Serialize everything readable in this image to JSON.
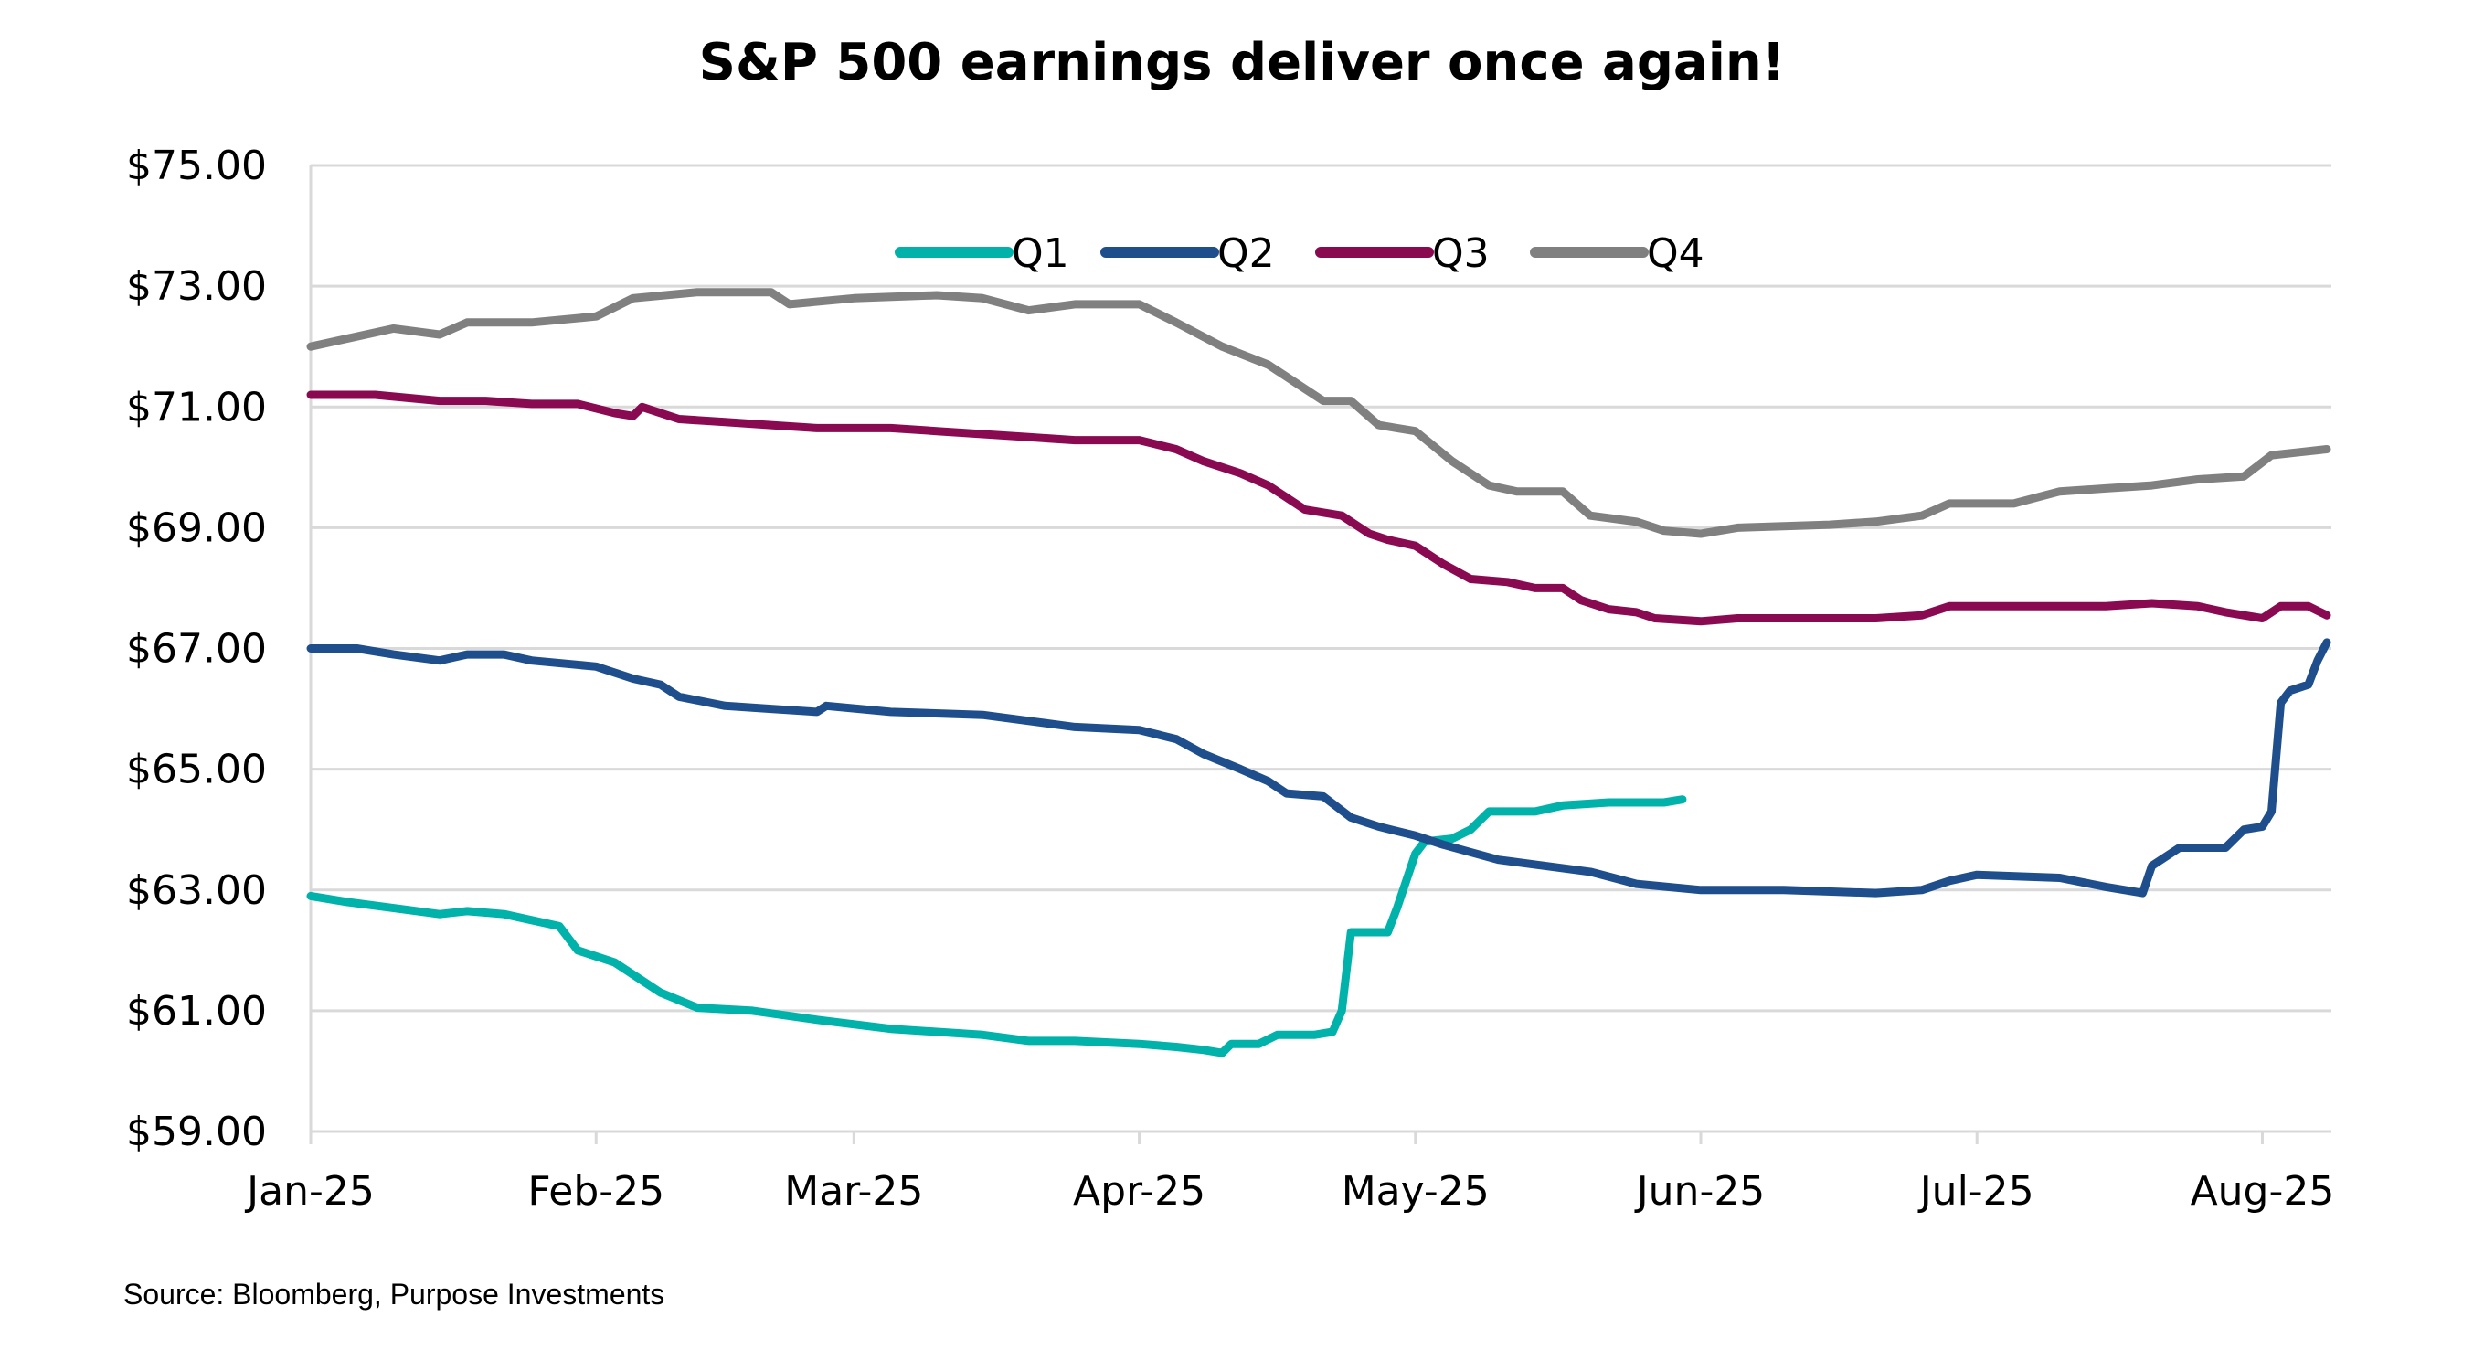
{
  "chart_data": {
    "type": "line",
    "title": "S&P 500 earnings deliver once again!",
    "source": "Source: Bloomberg, Purpose Investments",
    "xlabel": "",
    "ylabel": "",
    "ylim": [
      59,
      75
    ],
    "yticks": [
      59,
      61,
      63,
      65,
      67,
      69,
      71,
      73,
      75
    ],
    "ytick_labels": [
      "$59.00",
      "$61.00",
      "$63.00",
      "$65.00",
      "$67.00",
      "$69.00",
      "$71.00",
      "$73.00",
      "$75.00"
    ],
    "xlim": [
      "2025-01-01",
      "2025-08-08"
    ],
    "xticks": [
      "2025-01-01",
      "2025-02-01",
      "2025-03-01",
      "2025-04-01",
      "2025-05-01",
      "2025-06-01",
      "2025-07-01",
      "2025-08-01"
    ],
    "xtick_labels": [
      "Jan-25",
      "Feb-25",
      "Mar-25",
      "Apr-25",
      "May-25",
      "Jun-25",
      "Jul-25",
      "Aug-25"
    ],
    "grid": "horizontal",
    "legend": "top-center",
    "series": [
      {
        "name": "Q1",
        "color": "#00B2A9",
        "points": [
          [
            "2025-01-01",
            62.9
          ],
          [
            "2025-01-05",
            62.8
          ],
          [
            "2025-01-10",
            62.7
          ],
          [
            "2025-01-15",
            62.6
          ],
          [
            "2025-01-18",
            62.65
          ],
          [
            "2025-01-22",
            62.6
          ],
          [
            "2025-01-25",
            62.5
          ],
          [
            "2025-01-28",
            62.4
          ],
          [
            "2025-01-30",
            62.0
          ],
          [
            "2025-02-03",
            61.8
          ],
          [
            "2025-02-06",
            61.5
          ],
          [
            "2025-02-08",
            61.3
          ],
          [
            "2025-02-12",
            61.05
          ],
          [
            "2025-02-18",
            61.0
          ],
          [
            "2025-02-25",
            60.85
          ],
          [
            "2025-03-05",
            60.7
          ],
          [
            "2025-03-15",
            60.6
          ],
          [
            "2025-03-20",
            60.5
          ],
          [
            "2025-03-25",
            60.5
          ],
          [
            "2025-04-01",
            60.45
          ],
          [
            "2025-04-05",
            60.4
          ],
          [
            "2025-04-08",
            60.35
          ],
          [
            "2025-04-10",
            60.3
          ],
          [
            "2025-04-11",
            60.45
          ],
          [
            "2025-04-14",
            60.45
          ],
          [
            "2025-04-16",
            60.6
          ],
          [
            "2025-04-20",
            60.6
          ],
          [
            "2025-04-22",
            60.65
          ],
          [
            "2025-04-23",
            61.0
          ],
          [
            "2025-04-24",
            62.3
          ],
          [
            "2025-04-28",
            62.3
          ],
          [
            "2025-04-29",
            62.7
          ],
          [
            "2025-05-01",
            63.6
          ],
          [
            "2025-05-02",
            63.8
          ],
          [
            "2025-05-05",
            63.85
          ],
          [
            "2025-05-07",
            64.0
          ],
          [
            "2025-05-09",
            64.3
          ],
          [
            "2025-05-14",
            64.3
          ],
          [
            "2025-05-17",
            64.4
          ],
          [
            "2025-05-22",
            64.45
          ],
          [
            "2025-05-28",
            64.45
          ],
          [
            "2025-05-30",
            64.5
          ]
        ]
      },
      {
        "name": "Q2",
        "color": "#1F4E8C",
        "points": [
          [
            "2025-01-01",
            67.0
          ],
          [
            "2025-01-06",
            67.0
          ],
          [
            "2025-01-10",
            66.9
          ],
          [
            "2025-01-15",
            66.8
          ],
          [
            "2025-01-18",
            66.9
          ],
          [
            "2025-01-22",
            66.9
          ],
          [
            "2025-01-25",
            66.8
          ],
          [
            "2025-02-01",
            66.7
          ],
          [
            "2025-02-05",
            66.5
          ],
          [
            "2025-02-08",
            66.4
          ],
          [
            "2025-02-10",
            66.2
          ],
          [
            "2025-02-15",
            66.05
          ],
          [
            "2025-02-20",
            66.0
          ],
          [
            "2025-02-25",
            65.95
          ],
          [
            "2025-02-26",
            66.05
          ],
          [
            "2025-03-05",
            65.95
          ],
          [
            "2025-03-15",
            65.9
          ],
          [
            "2025-03-20",
            65.8
          ],
          [
            "2025-03-25",
            65.7
          ],
          [
            "2025-04-01",
            65.65
          ],
          [
            "2025-04-05",
            65.5
          ],
          [
            "2025-04-08",
            65.25
          ],
          [
            "2025-04-12",
            65.0
          ],
          [
            "2025-04-15",
            64.8
          ],
          [
            "2025-04-17",
            64.6
          ],
          [
            "2025-04-21",
            64.55
          ],
          [
            "2025-04-24",
            64.2
          ],
          [
            "2025-04-27",
            64.05
          ],
          [
            "2025-05-01",
            63.9
          ],
          [
            "2025-05-04",
            63.75
          ],
          [
            "2025-05-10",
            63.5
          ],
          [
            "2025-05-15",
            63.4
          ],
          [
            "2025-05-20",
            63.3
          ],
          [
            "2025-05-25",
            63.1
          ],
          [
            "2025-06-01",
            63.0
          ],
          [
            "2025-06-10",
            63.0
          ],
          [
            "2025-06-20",
            62.95
          ],
          [
            "2025-06-25",
            63.0
          ],
          [
            "2025-06-28",
            63.15
          ],
          [
            "2025-07-01",
            63.25
          ],
          [
            "2025-07-10",
            63.2
          ],
          [
            "2025-07-15",
            63.05
          ],
          [
            "2025-07-19",
            62.95
          ],
          [
            "2025-07-20",
            63.4
          ],
          [
            "2025-07-23",
            63.7
          ],
          [
            "2025-07-28",
            63.7
          ],
          [
            "2025-07-30",
            64.0
          ],
          [
            "2025-08-01",
            64.05
          ],
          [
            "2025-08-02",
            64.3
          ],
          [
            "2025-08-03",
            66.1
          ],
          [
            "2025-08-04",
            66.3
          ],
          [
            "2025-08-06",
            66.4
          ],
          [
            "2025-08-07",
            66.8
          ],
          [
            "2025-08-08",
            67.1
          ]
        ]
      },
      {
        "name": "Q3",
        "color": "#8A0A52",
        "points": [
          [
            "2025-01-01",
            71.2
          ],
          [
            "2025-01-08",
            71.2
          ],
          [
            "2025-01-15",
            71.1
          ],
          [
            "2025-01-20",
            71.1
          ],
          [
            "2025-01-25",
            71.05
          ],
          [
            "2025-01-30",
            71.05
          ],
          [
            "2025-02-03",
            70.9
          ],
          [
            "2025-02-05",
            70.85
          ],
          [
            "2025-02-06",
            71.0
          ],
          [
            "2025-02-10",
            70.8
          ],
          [
            "2025-02-15",
            70.75
          ],
          [
            "2025-02-20",
            70.7
          ],
          [
            "2025-02-25",
            70.65
          ],
          [
            "2025-03-05",
            70.65
          ],
          [
            "2025-03-10",
            70.6
          ],
          [
            "2025-03-15",
            70.55
          ],
          [
            "2025-03-20",
            70.5
          ],
          [
            "2025-03-25",
            70.45
          ],
          [
            "2025-04-01",
            70.45
          ],
          [
            "2025-04-05",
            70.3
          ],
          [
            "2025-04-08",
            70.1
          ],
          [
            "2025-04-12",
            69.9
          ],
          [
            "2025-04-15",
            69.7
          ],
          [
            "2025-04-19",
            69.3
          ],
          [
            "2025-04-23",
            69.2
          ],
          [
            "2025-04-26",
            68.9
          ],
          [
            "2025-04-28",
            68.8
          ],
          [
            "2025-05-01",
            68.7
          ],
          [
            "2025-05-04",
            68.4
          ],
          [
            "2025-05-07",
            68.15
          ],
          [
            "2025-05-11",
            68.1
          ],
          [
            "2025-05-14",
            68.0
          ],
          [
            "2025-05-17",
            68.0
          ],
          [
            "2025-05-19",
            67.8
          ],
          [
            "2025-05-22",
            67.65
          ],
          [
            "2025-05-25",
            67.6
          ],
          [
            "2025-05-27",
            67.5
          ],
          [
            "2025-06-01",
            67.45
          ],
          [
            "2025-06-05",
            67.5
          ],
          [
            "2025-06-15",
            67.5
          ],
          [
            "2025-06-20",
            67.5
          ],
          [
            "2025-06-25",
            67.55
          ],
          [
            "2025-06-28",
            67.7
          ],
          [
            "2025-07-10",
            67.7
          ],
          [
            "2025-07-15",
            67.7
          ],
          [
            "2025-07-20",
            67.75
          ],
          [
            "2025-07-25",
            67.7
          ],
          [
            "2025-07-28",
            67.6
          ],
          [
            "2025-08-01",
            67.5
          ],
          [
            "2025-08-03",
            67.7
          ],
          [
            "2025-08-06",
            67.7
          ],
          [
            "2025-08-08",
            67.55
          ]
        ]
      },
      {
        "name": "Q4",
        "color": "#808080",
        "points": [
          [
            "2025-01-01",
            72.0
          ],
          [
            "2025-01-10",
            72.3
          ],
          [
            "2025-01-15",
            72.2
          ],
          [
            "2025-01-18",
            72.4
          ],
          [
            "2025-01-25",
            72.4
          ],
          [
            "2025-02-01",
            72.5
          ],
          [
            "2025-02-05",
            72.8
          ],
          [
            "2025-02-12",
            72.9
          ],
          [
            "2025-02-20",
            72.9
          ],
          [
            "2025-02-22",
            72.7
          ],
          [
            "2025-03-01",
            72.8
          ],
          [
            "2025-03-10",
            72.85
          ],
          [
            "2025-03-15",
            72.8
          ],
          [
            "2025-03-20",
            72.6
          ],
          [
            "2025-03-25",
            72.7
          ],
          [
            "2025-04-01",
            72.7
          ],
          [
            "2025-04-05",
            72.4
          ],
          [
            "2025-04-10",
            72.0
          ],
          [
            "2025-04-15",
            71.7
          ],
          [
            "2025-04-18",
            71.4
          ],
          [
            "2025-04-21",
            71.1
          ],
          [
            "2025-04-24",
            71.1
          ],
          [
            "2025-04-27",
            70.7
          ],
          [
            "2025-05-01",
            70.6
          ],
          [
            "2025-05-05",
            70.1
          ],
          [
            "2025-05-09",
            69.7
          ],
          [
            "2025-05-12",
            69.6
          ],
          [
            "2025-05-17",
            69.6
          ],
          [
            "2025-05-20",
            69.2
          ],
          [
            "2025-05-25",
            69.1
          ],
          [
            "2025-05-28",
            68.95
          ],
          [
            "2025-06-01",
            68.9
          ],
          [
            "2025-06-05",
            69.0
          ],
          [
            "2025-06-15",
            69.05
          ],
          [
            "2025-06-20",
            69.1
          ],
          [
            "2025-06-25",
            69.2
          ],
          [
            "2025-06-28",
            69.4
          ],
          [
            "2025-07-05",
            69.4
          ],
          [
            "2025-07-10",
            69.6
          ],
          [
            "2025-07-15",
            69.65
          ],
          [
            "2025-07-20",
            69.7
          ],
          [
            "2025-07-25",
            69.8
          ],
          [
            "2025-07-30",
            69.85
          ],
          [
            "2025-08-02",
            70.2
          ],
          [
            "2025-08-05",
            70.25
          ],
          [
            "2025-08-08",
            70.3
          ]
        ]
      }
    ]
  }
}
